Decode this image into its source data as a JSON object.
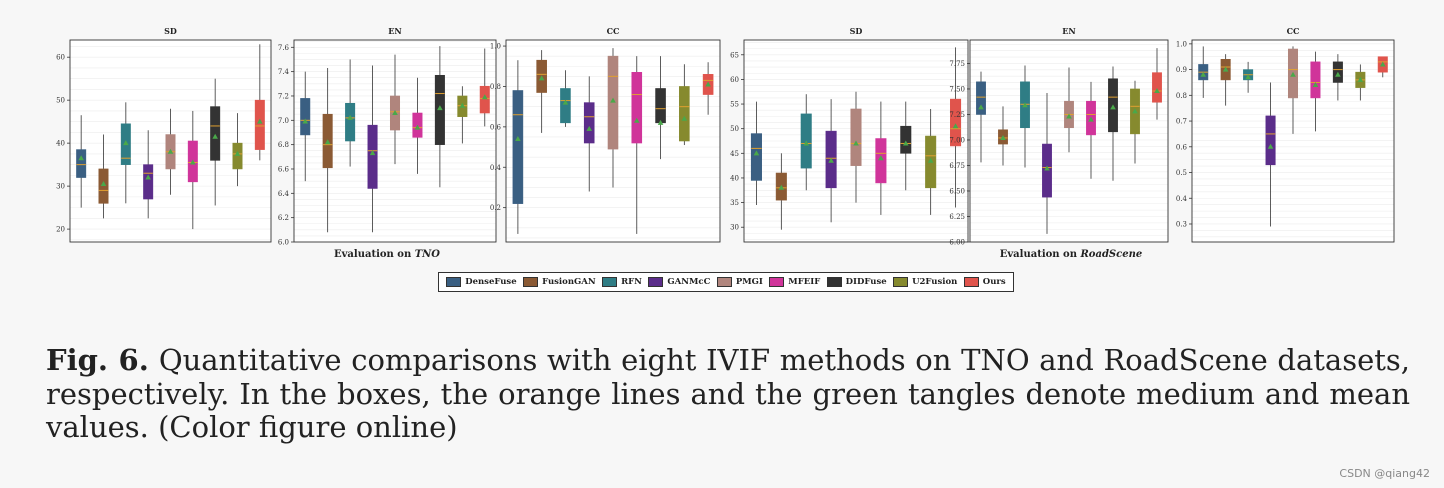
{
  "methods": [
    {
      "name": "DenseFuse",
      "color": "#3a5f82"
    },
    {
      "name": "FusionGAN",
      "color": "#8b5a34"
    },
    {
      "name": "RFN",
      "color": "#2f7d85"
    },
    {
      "name": "GANMcC",
      "color": "#5b2d8a"
    },
    {
      "name": "PMGI",
      "color": "#b0857d"
    },
    {
      "name": "MFEIF",
      "color": "#d0349a"
    },
    {
      "name": "DIDFuse",
      "color": "#333333"
    },
    {
      "name": "U2Fusion",
      "color": "#868a2e"
    },
    {
      "name": "Ours",
      "color": "#e0544c"
    }
  ],
  "median_color": "#e0a030",
  "mean_color": "#4aa84a",
  "group_captions": {
    "tno": {
      "prefix": "Evaluation on ",
      "dataset": "TNO"
    },
    "road": {
      "prefix": "Evaluation on ",
      "dataset": "RoadScene"
    }
  },
  "caption": {
    "label": "Fig. 6.",
    "text": "Quantitative comparisons with eight IVIF methods on TNO and RoadScene datasets, respectively. In the boxes, the orange lines and the green tangles denote medium and mean values. (Color figure online)"
  },
  "watermark": "CSDN @qiang42",
  "chart_data": [
    {
      "type": "box",
      "title": "SD",
      "dataset": "TNO",
      "ylim": [
        17,
        64
      ],
      "ticks": [
        20,
        30,
        40,
        50,
        60
      ],
      "grid": true,
      "categories": [
        "DenseFuse",
        "FusionGAN",
        "RFN",
        "GANMcC",
        "PMGI",
        "MFEIF",
        "DIDFuse",
        "U2Fusion",
        "Ours"
      ],
      "boxes": [
        {
          "whislo": 25,
          "q1": 32,
          "med": 35,
          "q3": 38.5,
          "whishi": 46.5,
          "mean": 36.5
        },
        {
          "whislo": 22.5,
          "q1": 26,
          "med": 29,
          "q3": 34,
          "whishi": 42,
          "mean": 30.5
        },
        {
          "whislo": 26,
          "q1": 35,
          "med": 36.5,
          "q3": 44.5,
          "whishi": 49.5,
          "mean": 40
        },
        {
          "whislo": 22.5,
          "q1": 27,
          "med": 33,
          "q3": 35,
          "whishi": 43,
          "mean": 32
        },
        {
          "whislo": 28,
          "q1": 34,
          "med": 38,
          "q3": 42,
          "whishi": 48,
          "mean": 38
        },
        {
          "whislo": 20,
          "q1": 31,
          "med": 35.5,
          "q3": 40.5,
          "whishi": 47.5,
          "mean": 35.5
        },
        {
          "whislo": 25.5,
          "q1": 36,
          "med": 44,
          "q3": 48.5,
          "whishi": 55,
          "mean": 41.5
        },
        {
          "whislo": 30,
          "q1": 34,
          "med": 37.5,
          "q3": 40,
          "whishi": 47,
          "mean": 37.5
        },
        {
          "whislo": 36,
          "q1": 38.5,
          "med": 44,
          "q3": 50,
          "whishi": 63,
          "mean": 45
        }
      ]
    },
    {
      "type": "box",
      "title": "EN",
      "dataset": "TNO",
      "ylim": [
        6.0,
        7.66
      ],
      "ticks": [
        6.0,
        6.2,
        6.4,
        6.6,
        6.8,
        7.0,
        7.2,
        7.4,
        7.6
      ],
      "grid": true,
      "categories": [
        "DenseFuse",
        "FusionGAN",
        "RFN",
        "GANMcC",
        "PMGI",
        "MFEIF",
        "DIDFuse",
        "U2Fusion",
        "Ours"
      ],
      "boxes": [
        {
          "whislo": 6.5,
          "q1": 6.88,
          "med": 7.0,
          "q3": 7.18,
          "whishi": 7.4,
          "mean": 6.99
        },
        {
          "whislo": 6.08,
          "q1": 6.61,
          "med": 6.8,
          "q3": 7.05,
          "whishi": 7.43,
          "mean": 6.82
        },
        {
          "whislo": 6.62,
          "q1": 6.83,
          "med": 7.02,
          "q3": 7.14,
          "whishi": 7.5,
          "mean": 7.02
        },
        {
          "whislo": 6.08,
          "q1": 6.44,
          "med": 6.75,
          "q3": 6.96,
          "whishi": 7.45,
          "mean": 6.73
        },
        {
          "whislo": 6.64,
          "q1": 6.92,
          "med": 7.07,
          "q3": 7.2,
          "whishi": 7.54,
          "mean": 7.06
        },
        {
          "whislo": 6.56,
          "q1": 6.86,
          "med": 6.94,
          "q3": 7.06,
          "whishi": 7.35,
          "mean": 6.94
        },
        {
          "whislo": 6.45,
          "q1": 6.8,
          "med": 7.22,
          "q3": 7.37,
          "whishi": 7.61,
          "mean": 7.1
        },
        {
          "whislo": 6.81,
          "q1": 7.03,
          "med": 7.12,
          "q3": 7.2,
          "whishi": 7.28,
          "mean": 7.12
        },
        {
          "whislo": 6.95,
          "q1": 7.06,
          "med": 7.18,
          "q3": 7.28,
          "whishi": 7.59,
          "mean": 7.19
        }
      ]
    },
    {
      "type": "box",
      "title": "CC",
      "dataset": "TNO",
      "ylim": [
        0.03,
        1.03
      ],
      "ticks": [
        0.2,
        0.4,
        0.6,
        0.8,
        1.0
      ],
      "grid": true,
      "categories": [
        "DenseFuse",
        "FusionGAN",
        "RFN",
        "GANMcC",
        "PMGI",
        "MFEIF",
        "DIDFuse",
        "U2Fusion",
        "Ours"
      ],
      "boxes": [
        {
          "whislo": 0.07,
          "q1": 0.22,
          "med": 0.66,
          "q3": 0.78,
          "whishi": 0.93,
          "mean": 0.54
        },
        {
          "whislo": 0.57,
          "q1": 0.77,
          "med": 0.86,
          "q3": 0.93,
          "whishi": 0.98,
          "mean": 0.84
        },
        {
          "whislo": 0.6,
          "q1": 0.62,
          "med": 0.73,
          "q3": 0.79,
          "whishi": 0.88,
          "mean": 0.72
        },
        {
          "whislo": 0.28,
          "q1": 0.52,
          "med": 0.65,
          "q3": 0.72,
          "whishi": 0.85,
          "mean": 0.59
        },
        {
          "whislo": 0.3,
          "q1": 0.49,
          "med": 0.85,
          "q3": 0.95,
          "whishi": 0.99,
          "mean": 0.73
        },
        {
          "whislo": 0.07,
          "q1": 0.52,
          "med": 0.76,
          "q3": 0.87,
          "whishi": 0.95,
          "mean": 0.63
        },
        {
          "whislo": 0.44,
          "q1": 0.62,
          "med": 0.69,
          "q3": 0.79,
          "whishi": 0.95,
          "mean": 0.62
        },
        {
          "whislo": 0.51,
          "q1": 0.53,
          "med": 0.7,
          "q3": 0.8,
          "whishi": 0.91,
          "mean": 0.64
        },
        {
          "whislo": 0.66,
          "q1": 0.76,
          "med": 0.83,
          "q3": 0.86,
          "whishi": 0.92,
          "mean": 0.81
        }
      ]
    },
    {
      "type": "box",
      "title": "SD",
      "dataset": "RoadScene",
      "ylim": [
        27,
        68
      ],
      "ticks": [
        30,
        35,
        40,
        45,
        50,
        55,
        60,
        65
      ],
      "grid": true,
      "categories": [
        "DenseFuse",
        "FusionGAN",
        "RFN",
        "GANMcC",
        "PMGI",
        "MFEIF",
        "DIDFuse",
        "U2Fusion",
        "Ours"
      ],
      "boxes": [
        {
          "whislo": 34.5,
          "q1": 39.5,
          "med": 46,
          "q3": 49,
          "whishi": 55.5,
          "mean": 45
        },
        {
          "whislo": 29.5,
          "q1": 35.5,
          "med": 38,
          "q3": 41,
          "whishi": 45,
          "mean": 38
        },
        {
          "whislo": 37.5,
          "q1": 42,
          "med": 47,
          "q3": 53,
          "whishi": 57,
          "mean": 47
        },
        {
          "whislo": 31,
          "q1": 38,
          "med": 44,
          "q3": 49.5,
          "whishi": 56,
          "mean": 43.5
        },
        {
          "whislo": 35,
          "q1": 42.5,
          "med": 47,
          "q3": 54,
          "whishi": 57.5,
          "mean": 47
        },
        {
          "whislo": 32.5,
          "q1": 39,
          "med": 45,
          "q3": 48,
          "whishi": 55.5,
          "mean": 44
        },
        {
          "whislo": 37.5,
          "q1": 45,
          "med": 47,
          "q3": 50.5,
          "whishi": 55.5,
          "mean": 47
        },
        {
          "whislo": 32.5,
          "q1": 38,
          "med": 44.5,
          "q3": 48.5,
          "whishi": 54,
          "mean": 43.5
        },
        {
          "whislo": 34,
          "q1": 46.5,
          "med": 50,
          "q3": 56,
          "whishi": 66.5,
          "mean": 50.5
        }
      ]
    },
    {
      "type": "box",
      "title": "EN",
      "dataset": "RoadScene",
      "ylim": [
        6.0,
        7.98
      ],
      "ticks": [
        6.0,
        6.25,
        6.5,
        6.75,
        7.0,
        7.25,
        7.5,
        7.75
      ],
      "grid": true,
      "categories": [
        "DenseFuse",
        "FusionGAN",
        "RFN",
        "GANMcC",
        "PMGI",
        "MFEIF",
        "DIDFuse",
        "U2Fusion",
        "Ours"
      ],
      "boxes": [
        {
          "whislo": 6.78,
          "q1": 7.25,
          "med": 7.42,
          "q3": 7.57,
          "whishi": 7.67,
          "mean": 7.32
        },
        {
          "whislo": 6.75,
          "q1": 6.96,
          "med": 7.02,
          "q3": 7.1,
          "whishi": 7.33,
          "mean": 7.02
        },
        {
          "whislo": 6.73,
          "q1": 7.12,
          "med": 7.35,
          "q3": 7.57,
          "whishi": 7.73,
          "mean": 7.34
        },
        {
          "whislo": 6.08,
          "q1": 6.44,
          "med": 6.73,
          "q3": 6.96,
          "whishi": 7.46,
          "mean": 6.72
        },
        {
          "whislo": 6.88,
          "q1": 7.12,
          "med": 7.25,
          "q3": 7.38,
          "whishi": 7.71,
          "mean": 7.23
        },
        {
          "whislo": 6.62,
          "q1": 7.05,
          "med": 7.25,
          "q3": 7.38,
          "whishi": 7.57,
          "mean": 7.2
        },
        {
          "whislo": 6.6,
          "q1": 7.08,
          "med": 7.42,
          "q3": 7.6,
          "whishi": 7.72,
          "mean": 7.32
        },
        {
          "whislo": 6.77,
          "q1": 7.06,
          "med": 7.33,
          "q3": 7.5,
          "whishi": 7.58,
          "mean": 7.28
        },
        {
          "whislo": 7.2,
          "q1": 7.37,
          "med": 7.48,
          "q3": 7.66,
          "whishi": 7.9,
          "mean": 7.48
        }
      ]
    },
    {
      "type": "box",
      "title": "CC",
      "dataset": "RoadScene",
      "ylim": [
        0.23,
        1.015
      ],
      "ticks": [
        0.3,
        0.4,
        0.5,
        0.6,
        0.7,
        0.8,
        0.9,
        1.0
      ],
      "grid": true,
      "categories": [
        "DenseFuse",
        "FusionGAN",
        "RFN",
        "GANMcC",
        "PMGI",
        "MFEIF",
        "DIDFuse",
        "U2Fusion",
        "Ours"
      ],
      "boxes": [
        {
          "whislo": 0.79,
          "q1": 0.86,
          "med": 0.89,
          "q3": 0.92,
          "whishi": 0.99,
          "mean": 0.88
        },
        {
          "whislo": 0.76,
          "q1": 0.86,
          "med": 0.91,
          "q3": 0.94,
          "whishi": 0.96,
          "mean": 0.9
        },
        {
          "whislo": 0.81,
          "q1": 0.86,
          "med": 0.88,
          "q3": 0.9,
          "whishi": 0.93,
          "mean": 0.87
        },
        {
          "whislo": 0.29,
          "q1": 0.53,
          "med": 0.65,
          "q3": 0.72,
          "whishi": 0.85,
          "mean": 0.6
        },
        {
          "whislo": 0.65,
          "q1": 0.79,
          "med": 0.9,
          "q3": 0.98,
          "whishi": 0.99,
          "mean": 0.88
        },
        {
          "whislo": 0.66,
          "q1": 0.79,
          "med": 0.85,
          "q3": 0.93,
          "whishi": 0.97,
          "mean": 0.84
        },
        {
          "whislo": 0.78,
          "q1": 0.85,
          "med": 0.9,
          "q3": 0.93,
          "whishi": 0.96,
          "mean": 0.88
        },
        {
          "whislo": 0.78,
          "q1": 0.83,
          "med": 0.86,
          "q3": 0.89,
          "whishi": 0.92,
          "mean": 0.86
        },
        {
          "whislo": 0.87,
          "q1": 0.89,
          "med": 0.93,
          "q3": 0.95,
          "whishi": 0.95,
          "mean": 0.92
        }
      ]
    }
  ]
}
